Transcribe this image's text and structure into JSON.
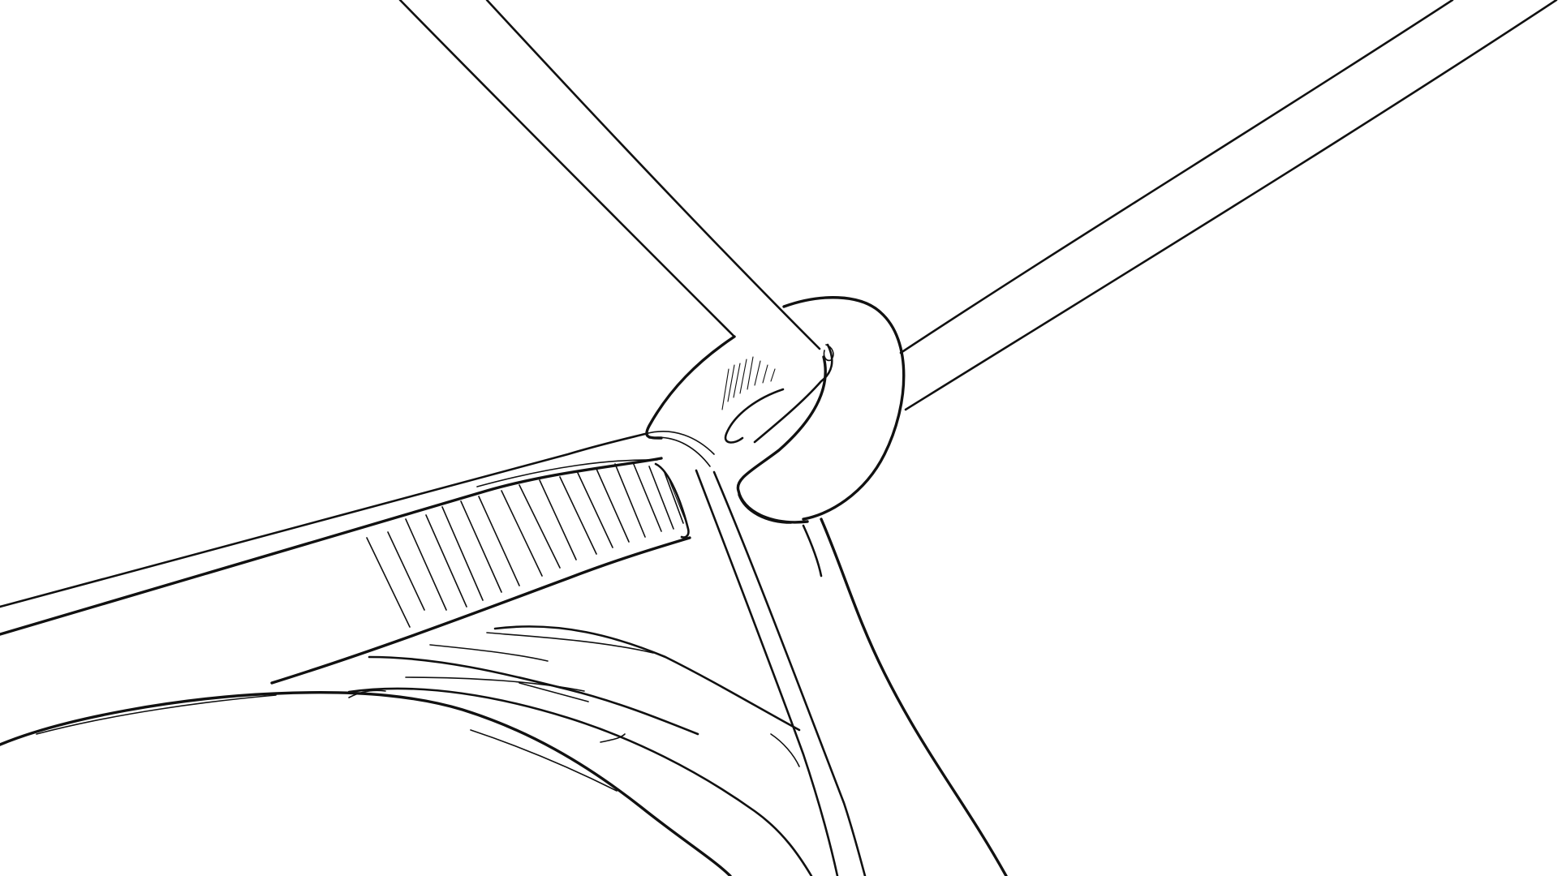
{
  "scene": {
    "kind": "line-art-sketch",
    "background_color": "#ffffff",
    "ink_color": "#111111"
  }
}
